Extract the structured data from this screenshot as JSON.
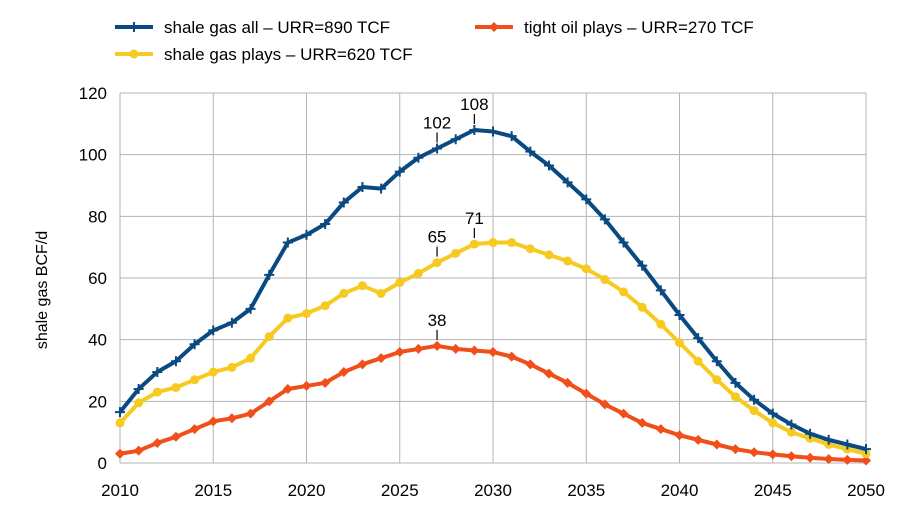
{
  "chart_data": {
    "type": "line",
    "ylabel": "shale gas BCF/d",
    "xlim": [
      2010,
      2050
    ],
    "ylim": [
      0,
      120
    ],
    "x_ticks": [
      2010,
      2015,
      2020,
      2025,
      2030,
      2035,
      2040,
      2045,
      2050
    ],
    "y_ticks": [
      0,
      20,
      40,
      60,
      80,
      100,
      120
    ],
    "grid": true,
    "legend_position": "top",
    "x": [
      2010,
      2011,
      2012,
      2013,
      2014,
      2015,
      2016,
      2017,
      2018,
      2019,
      2020,
      2021,
      2022,
      2023,
      2024,
      2025,
      2026,
      2027,
      2028,
      2029,
      2030,
      2031,
      2032,
      2033,
      2034,
      2035,
      2036,
      2037,
      2038,
      2039,
      2040,
      2041,
      2042,
      2043,
      2044,
      2045,
      2046,
      2047,
      2048,
      2049,
      2050
    ],
    "series": [
      {
        "name": "shale gas all – URR=890 TCF",
        "color": "#0a4a80",
        "marker": "plus",
        "values": [
          16.5,
          24,
          29.5,
          33,
          38.5,
          43,
          45.5,
          50,
          61,
          71.5,
          74,
          77.5,
          84.5,
          89.5,
          89,
          94.5,
          99,
          102,
          105,
          108,
          107.5,
          106,
          101,
          96.5,
          91,
          85.5,
          79,
          71.5,
          64,
          56,
          48,
          40.5,
          33,
          26,
          20.5,
          16,
          12.5,
          9.5,
          7.5,
          6,
          4.5
        ]
      },
      {
        "name": "tight oil plays – URR=270 TCF",
        "color": "#f04e1a",
        "marker": "diamond",
        "values": [
          3,
          4,
          6.5,
          8.5,
          11,
          13.5,
          14.5,
          16,
          20,
          24,
          25,
          26,
          29.5,
          32,
          34,
          36,
          37,
          38,
          37,
          36.5,
          36,
          34.5,
          32,
          29,
          26,
          22.5,
          19,
          16,
          13,
          11,
          9,
          7.5,
          6,
          4.5,
          3.5,
          2.8,
          2.2,
          1.7,
          1.3,
          1,
          0.8
        ]
      },
      {
        "name": "shale gas plays – URR=620 TCF",
        "color": "#f7ca22",
        "marker": "circle",
        "values": [
          13,
          19.5,
          23,
          24.5,
          27,
          29.5,
          31,
          34,
          41,
          47,
          48.5,
          51,
          55,
          57.5,
          55,
          58.5,
          61.5,
          65,
          68,
          71,
          71.5,
          71.5,
          69.5,
          67.5,
          65.5,
          63,
          59.5,
          55.5,
          50.5,
          45,
          39,
          33,
          27,
          21.5,
          17,
          13,
          10,
          8,
          6,
          4.5,
          3
        ]
      }
    ],
    "annotations": [
      {
        "series": 0,
        "x": 2027,
        "label": "102"
      },
      {
        "series": 0,
        "x": 2029,
        "label": "108"
      },
      {
        "series": 2,
        "x": 2027,
        "label": "65"
      },
      {
        "series": 2,
        "x": 2029,
        "label": "71"
      },
      {
        "series": 1,
        "x": 2027,
        "label": "38"
      }
    ]
  }
}
